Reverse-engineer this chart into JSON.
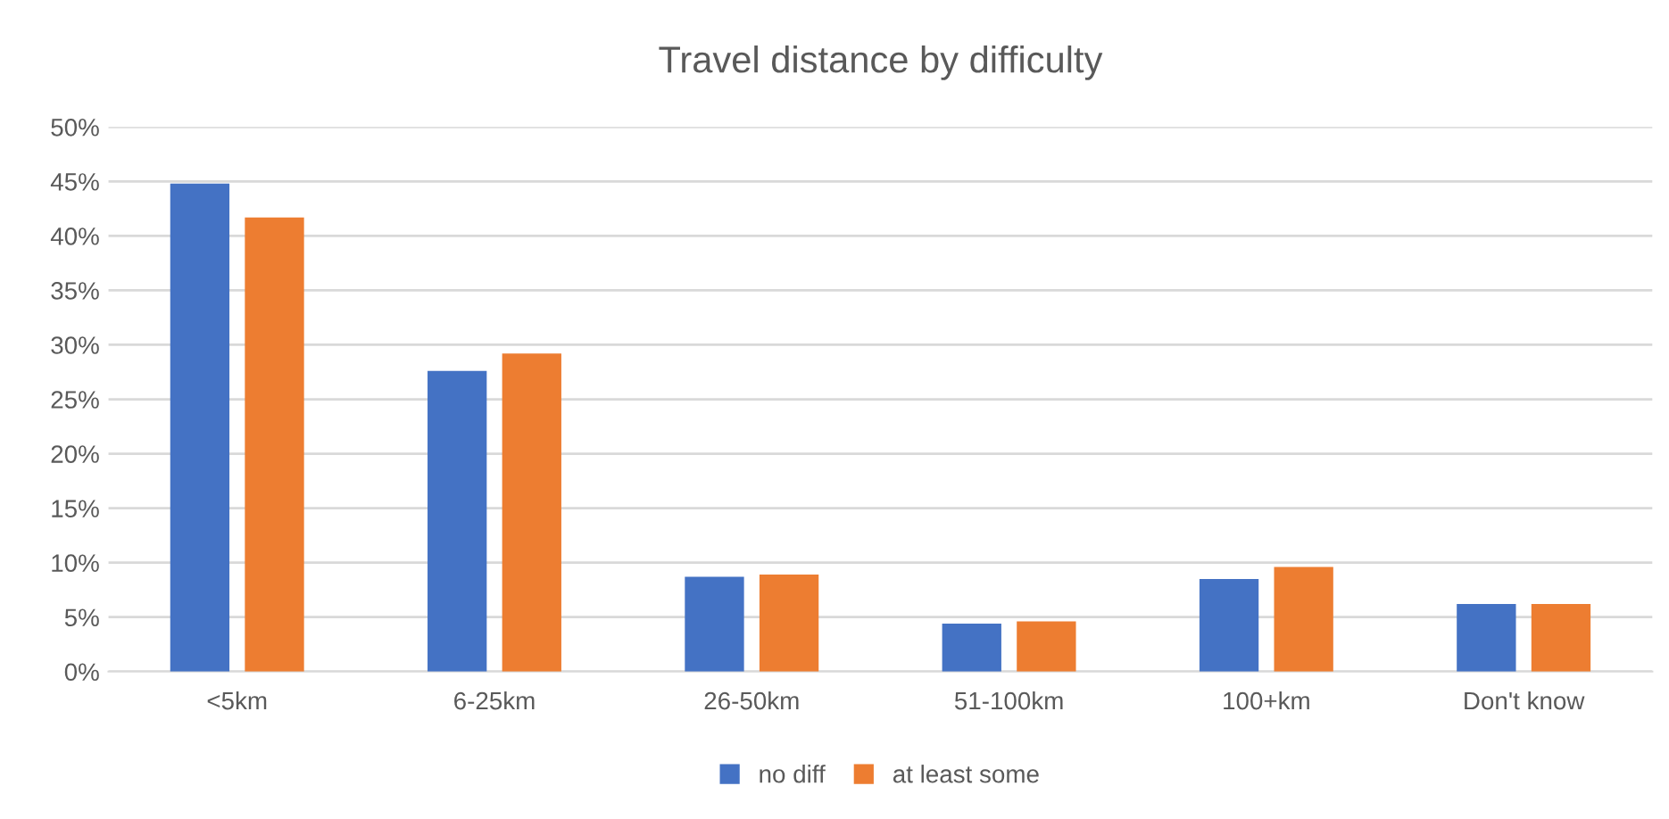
{
  "chart_data": {
    "type": "bar",
    "title": "Travel distance by difficulty",
    "categories": [
      "<5km",
      "6-25km",
      "26-50km",
      "51-100km",
      "100+km",
      "Don't know"
    ],
    "series": [
      {
        "name": "no diff",
        "color": "#4472c4",
        "values": [
          44.8,
          27.6,
          8.7,
          4.4,
          8.5,
          6.2
        ]
      },
      {
        "name": "at least some",
        "color": "#ed7d31",
        "values": [
          41.7,
          29.2,
          8.9,
          4.6,
          9.6,
          6.2
        ]
      }
    ],
    "ylim": [
      0,
      50
    ],
    "yticks": [
      {
        "value": 0,
        "label": "0%"
      },
      {
        "value": 5,
        "label": "5%"
      },
      {
        "value": 10,
        "label": "10%"
      },
      {
        "value": 15,
        "label": "15%"
      },
      {
        "value": 20,
        "label": "20%"
      },
      {
        "value": 25,
        "label": "25%"
      },
      {
        "value": 30,
        "label": "30%"
      },
      {
        "value": 35,
        "label": "35%"
      },
      {
        "value": 40,
        "label": "40%"
      },
      {
        "value": 45,
        "label": "45%"
      },
      {
        "value": 50,
        "label": "50%"
      }
    ],
    "grid": "y",
    "legend": "bottom"
  }
}
